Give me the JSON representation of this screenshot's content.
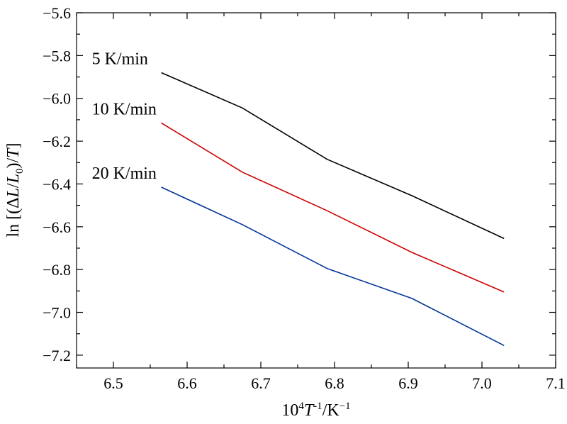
{
  "chart_data": {
    "type": "line",
    "xlim": [
      6.45,
      7.1
    ],
    "ylim": [
      -7.26,
      -5.6
    ],
    "x_major_ticks": [
      6.5,
      6.6,
      6.7,
      6.8,
      6.9,
      7.0,
      7.1
    ],
    "x_tick_labels": [
      "6.5",
      "6.6",
      "6.7",
      "6.8",
      "6.9",
      "7.0",
      "7.1"
    ],
    "y_major_ticks": [
      -5.6,
      -5.8,
      -6.0,
      -6.2,
      -6.4,
      -6.6,
      -6.8,
      -7.0,
      -7.2
    ],
    "y_tick_labels": [
      "−5.6",
      "−5.8",
      "−6.0",
      "−6.2",
      "−6.4",
      "−6.6",
      "−6.8",
      "−7.0",
      "−7.2"
    ],
    "xlabel": "10⁴T⁻¹/K⁻¹",
    "xlabel_parts": {
      "base": "10",
      "exp1": "4",
      "var": "T",
      "exp2": "-1",
      "unit": "/K",
      "exp3": "−1"
    },
    "ylabel": "ln [(ΔL/L0)/T]",
    "ylabel_parts": {
      "pre": "ln [(Δ",
      "var1": "L",
      "slash": "/",
      "var2": "L",
      "sub": "0",
      "post": ")/",
      "var3": "T",
      "close": "]"
    },
    "grid": false,
    "legend": "inline labels",
    "x": [
      6.565,
      6.675,
      6.79,
      6.905,
      7.03
    ],
    "series": [
      {
        "name": "5 K/min",
        "color": "#000000",
        "values": [
          -5.88,
          -6.045,
          -6.285,
          -6.455,
          -6.655
        ]
      },
      {
        "name": "10 K/min",
        "color": "#cc0000",
        "values": [
          -6.115,
          -6.345,
          -6.525,
          -6.72,
          -6.905
        ]
      },
      {
        "name": "20 K/min",
        "color": "#003399",
        "values": [
          -6.415,
          -6.59,
          -6.795,
          -6.935,
          -7.155
        ]
      }
    ]
  }
}
